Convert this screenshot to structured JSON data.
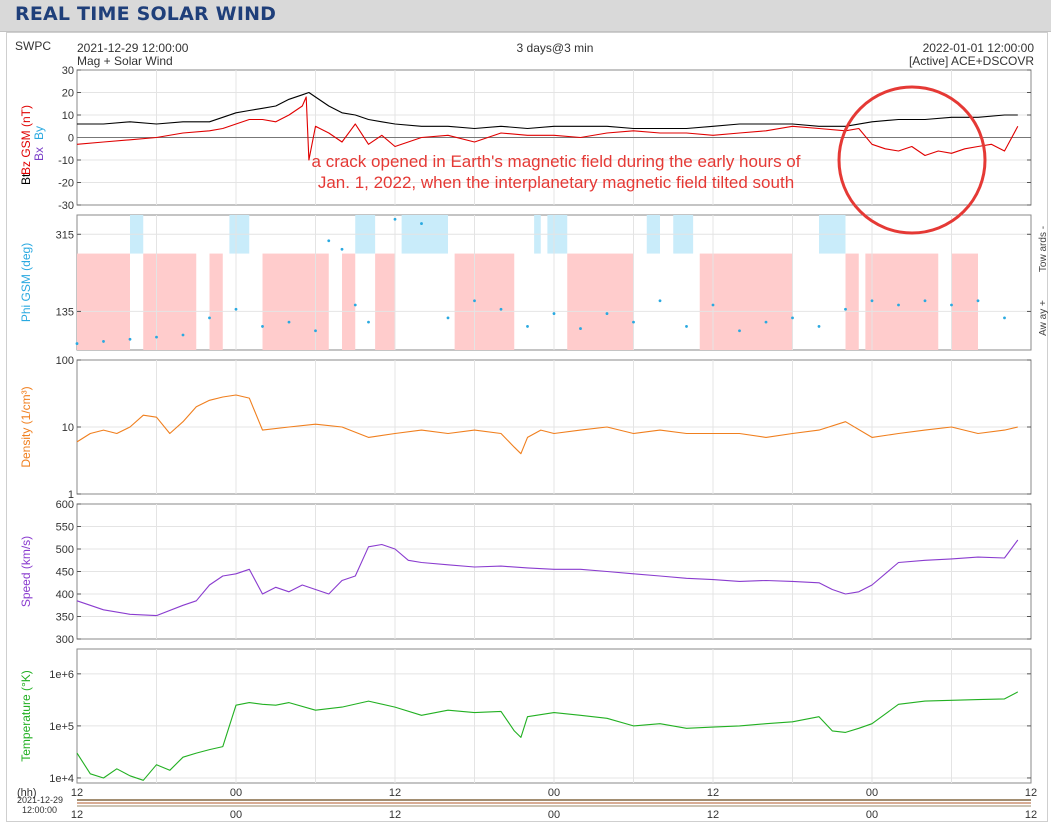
{
  "page_title": "REAL TIME SOLAR WIND",
  "header": {
    "source": "SWPC",
    "start_time": "2021-12-29 12:00:00",
    "subtitle": "Mag + Solar Wind",
    "span": "3 days@3 min",
    "end_time": "2022-01-01 12:00:00",
    "spacecraft": "[Active] ACE+DSCOVR"
  },
  "annotation": {
    "line1": "a crack opened in Earth's magnetic field during the early hours of",
    "line2": "Jan. 1, 2022, when the interplanetary magnetic field tilted south",
    "color": "#e53935"
  },
  "time_axis": {
    "unit_label": "(hh)",
    "start_date": "2021-12-29",
    "start_clock": "12:00:00",
    "tick_labels": [
      "12",
      "00",
      "12",
      "00",
      "12",
      "00",
      "12"
    ],
    "x_range_hours": [
      0,
      72
    ]
  },
  "colors": {
    "bt": "#000000",
    "bz": "#e00000",
    "bx": "#7a3fc8",
    "by": "#2aa9e0",
    "phi": "#2aa9e0",
    "towards_band": "#c9ecfa",
    "away_band": "#ffcccc",
    "density": "#f07f1e",
    "speed": "#8a3ccf",
    "temperature": "#22b022"
  },
  "chart_data": [
    {
      "type": "line",
      "panel": "mag",
      "ylabel_parts": [
        "Bt",
        "Bx",
        "By",
        "Bz GSM (nT)"
      ],
      "ylim": [
        -30,
        30
      ],
      "yticks": [
        "30",
        "20",
        "10",
        "0",
        "-10",
        "-20",
        "-30"
      ],
      "series": [
        {
          "name": "Bt",
          "x": [
            0,
            2,
            4,
            6,
            8,
            10,
            11,
            12,
            13,
            14,
            15,
            16,
            17,
            17.5,
            18,
            19,
            20,
            21,
            22,
            23,
            24,
            26,
            28,
            30,
            32,
            34,
            36,
            38,
            40,
            42,
            44,
            46,
            48,
            50,
            52,
            54,
            56,
            58,
            60,
            62,
            64,
            66,
            68,
            70,
            71
          ],
          "y": [
            6,
            6,
            7,
            6,
            7,
            7,
            9,
            11,
            12,
            13,
            14,
            17,
            19,
            20,
            18,
            14,
            11,
            10,
            8,
            7,
            6,
            5,
            5,
            4,
            5,
            4,
            5,
            5,
            5,
            4,
            4,
            4,
            5,
            6,
            6,
            6,
            5,
            5,
            7,
            8,
            8,
            9,
            9,
            10,
            10
          ]
        },
        {
          "name": "Bz",
          "x": [
            0,
            2,
            4,
            6,
            8,
            10,
            11,
            12,
            13,
            14,
            15,
            16,
            17,
            17.3,
            17.5,
            18,
            19,
            20,
            21,
            22,
            23,
            24,
            26,
            28,
            30,
            32,
            34,
            36,
            38,
            40,
            42,
            44,
            46,
            48,
            50,
            52,
            54,
            56,
            58,
            59,
            60,
            61,
            62,
            63,
            64,
            65,
            66,
            67,
            68,
            69,
            70,
            71
          ],
          "y": [
            -3,
            -2,
            -1,
            0,
            2,
            3,
            4,
            6,
            8,
            8,
            7,
            10,
            14,
            18,
            -10,
            5,
            2,
            -2,
            6,
            -3,
            1,
            -4,
            0,
            1,
            -2,
            2,
            1,
            1,
            0,
            2,
            3,
            2,
            2,
            1,
            2,
            3,
            5,
            4,
            3,
            4,
            -3,
            -5,
            -6,
            -4,
            -8,
            -6,
            -7,
            -5,
            -4,
            -3,
            -6,
            5
          ]
        }
      ]
    },
    {
      "type": "scatter",
      "panel": "phi",
      "ylabel": "Phi GSM (deg)",
      "ylim": [
        45,
        360
      ],
      "yticks": [
        "315",
        "135"
      ],
      "right_labels": [
        "Tow ards -",
        "Aw ay +"
      ],
      "series": [
        {
          "name": "Phi",
          "x": [
            0,
            2,
            4,
            6,
            8,
            10,
            12,
            14,
            16,
            18,
            19,
            20,
            21,
            22,
            24,
            26,
            28,
            30,
            32,
            34,
            36,
            38,
            40,
            42,
            44,
            46,
            48,
            50,
            52,
            54,
            56,
            58,
            60,
            62,
            64,
            66,
            68,
            70
          ],
          "y": [
            60,
            65,
            70,
            75,
            80,
            120,
            140,
            100,
            110,
            90,
            300,
            280,
            150,
            110,
            350,
            340,
            120,
            160,
            140,
            100,
            130,
            95,
            130,
            110,
            160,
            100,
            150,
            90,
            110,
            120,
            100,
            140,
            160,
            150,
            160,
            150,
            160,
            120
          ]
        }
      ],
      "towards_bands_hours": [
        [
          4,
          5
        ],
        [
          11.5,
          13
        ],
        [
          21,
          22.5
        ],
        [
          24.5,
          28
        ],
        [
          34.5,
          35
        ],
        [
          35.5,
          37
        ],
        [
          43,
          44
        ],
        [
          45,
          46.5
        ],
        [
          56,
          58
        ]
      ],
      "away_bands_hours": [
        [
          0,
          4
        ],
        [
          5,
          9
        ],
        [
          10,
          11
        ],
        [
          14,
          19
        ],
        [
          20,
          21
        ],
        [
          22.5,
          24
        ],
        [
          28.5,
          33
        ],
        [
          37,
          42
        ],
        [
          47,
          54
        ],
        [
          58,
          59
        ],
        [
          59.5,
          65
        ],
        [
          66,
          68
        ]
      ]
    },
    {
      "type": "line",
      "panel": "density",
      "ylabel": "Density (1/cm³)",
      "yscale": "log",
      "ylim": [
        1,
        100
      ],
      "yticks": [
        "100",
        "10",
        "1"
      ],
      "series": [
        {
          "name": "Density",
          "x": [
            0,
            1,
            2,
            3,
            4,
            5,
            6,
            7,
            8,
            9,
            10,
            11,
            12,
            13,
            14,
            16,
            18,
            20,
            22,
            24,
            26,
            28,
            30,
            32,
            33,
            33.5,
            34,
            35,
            36,
            38,
            40,
            42,
            44,
            46,
            48,
            50,
            52,
            54,
            56,
            58,
            60,
            62,
            64,
            66,
            68,
            70,
            71
          ],
          "y": [
            6,
            8,
            9,
            8,
            10,
            15,
            14,
            8,
            12,
            20,
            25,
            28,
            30,
            27,
            9,
            10,
            11,
            10,
            7,
            8,
            9,
            8,
            9,
            8,
            5,
            4,
            7,
            9,
            8,
            9,
            10,
            8,
            9,
            8,
            8,
            8,
            7,
            8,
            9,
            12,
            7,
            8,
            9,
            10,
            8,
            9,
            10
          ]
        }
      ]
    },
    {
      "type": "line",
      "panel": "speed",
      "ylabel": "Speed (km/s)",
      "ylim": [
        300,
        600
      ],
      "yticks": [
        "600",
        "550",
        "500",
        "450",
        "400",
        "350",
        "300"
      ],
      "series": [
        {
          "name": "Speed",
          "x": [
            0,
            2,
            4,
            6,
            8,
            9,
            10,
            11,
            12,
            13,
            14,
            15,
            16,
            17,
            18,
            19,
            20,
            21,
            22,
            23,
            24,
            25,
            26,
            28,
            30,
            32,
            34,
            36,
            38,
            40,
            42,
            44,
            46,
            48,
            50,
            52,
            54,
            56,
            57,
            58,
            59,
            60,
            62,
            64,
            66,
            68,
            70,
            71
          ],
          "y": [
            385,
            365,
            355,
            352,
            375,
            385,
            420,
            440,
            445,
            455,
            400,
            415,
            405,
            420,
            410,
            400,
            430,
            440,
            505,
            510,
            500,
            475,
            470,
            465,
            460,
            462,
            458,
            455,
            455,
            450,
            445,
            440,
            435,
            432,
            428,
            430,
            428,
            425,
            410,
            400,
            405,
            420,
            470,
            475,
            478,
            482,
            480,
            520
          ]
        }
      ]
    },
    {
      "type": "line",
      "panel": "temperature",
      "ylabel": "Temperature (°K)",
      "yscale": "log",
      "ylim": [
        8000,
        3000000
      ],
      "yticks": [
        "1e+6",
        "1e+5",
        "1e+4"
      ],
      "series": [
        {
          "name": "Temperature",
          "x": [
            0,
            1,
            2,
            3,
            4,
            5,
            6,
            7,
            8,
            9,
            10,
            11,
            12,
            13,
            14,
            15,
            16,
            18,
            20,
            22,
            24,
            26,
            28,
            30,
            32,
            33,
            33.5,
            34,
            36,
            38,
            40,
            42,
            44,
            46,
            48,
            50,
            52,
            54,
            56,
            57,
            58,
            59,
            60,
            62,
            64,
            66,
            68,
            70,
            71
          ],
          "y": [
            30000,
            12000,
            10000,
            15000,
            11000,
            9000,
            18000,
            14000,
            25000,
            30000,
            35000,
            40000,
            250000,
            280000,
            260000,
            250000,
            280000,
            200000,
            230000,
            300000,
            230000,
            160000,
            200000,
            180000,
            190000,
            80000,
            60000,
            150000,
            180000,
            160000,
            140000,
            100000,
            110000,
            90000,
            95000,
            100000,
            110000,
            120000,
            150000,
            80000,
            75000,
            90000,
            110000,
            260000,
            300000,
            310000,
            320000,
            330000,
            450000
          ]
        }
      ]
    }
  ]
}
